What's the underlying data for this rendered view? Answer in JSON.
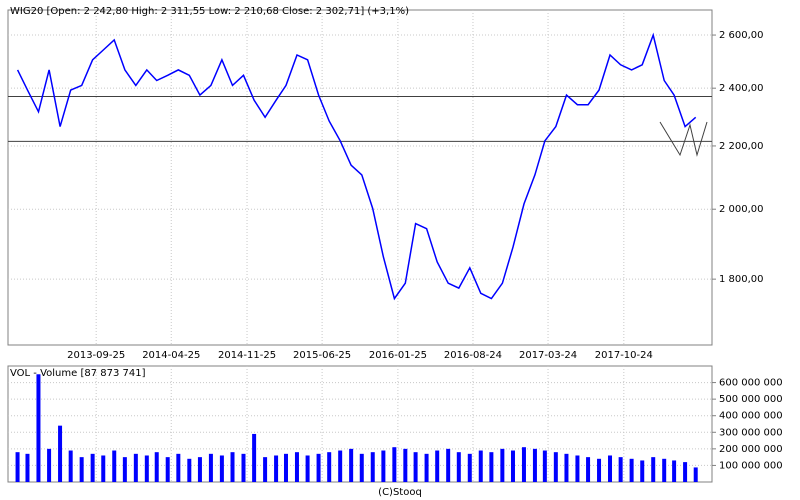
{
  "chart_data": [
    {
      "type": "line",
      "title": "WIG20 [Open: 2 242,80  High: 2 311,55  Low: 2 210,68  Close: 2 302,71] (+3,1%)",
      "log_scale": true,
      "grid": true,
      "x": [
        "2013-02-15",
        "2013-03-15",
        "2013-04-15",
        "2013-05-15",
        "2013-06-15",
        "2013-07-15",
        "2013-08-15",
        "2013-09-15",
        "2013-10-15",
        "2013-11-15",
        "2013-12-15",
        "2014-01-15",
        "2014-02-15",
        "2014-03-15",
        "2014-04-15",
        "2014-05-15",
        "2014-06-15",
        "2014-07-15",
        "2014-08-15",
        "2014-09-15",
        "2014-10-15",
        "2014-11-15",
        "2014-12-15",
        "2015-01-15",
        "2015-02-15",
        "2015-03-15",
        "2015-04-15",
        "2015-05-15",
        "2015-06-15",
        "2015-07-15",
        "2015-08-15",
        "2015-09-15",
        "2015-10-15",
        "2015-11-15",
        "2015-12-15",
        "2016-01-15",
        "2016-02-15",
        "2016-03-15",
        "2016-04-15",
        "2016-05-15",
        "2016-06-15",
        "2016-07-15",
        "2016-08-15",
        "2016-09-15",
        "2016-10-15",
        "2016-11-15",
        "2016-12-15",
        "2017-01-15",
        "2017-02-15",
        "2017-03-15",
        "2017-04-15",
        "2017-05-15",
        "2017-06-15",
        "2017-07-15",
        "2017-08-15",
        "2017-09-15",
        "2017-10-15",
        "2017-11-15",
        "2017-12-15",
        "2018-01-15",
        "2018-02-15",
        "2018-03-15",
        "2018-04-15",
        "2018-05-15"
      ],
      "series": [
        {
          "name": "WIG20",
          "color": "#0000ff",
          "values": [
            2467,
            2393,
            2316,
            2467,
            2265,
            2393,
            2410,
            2505,
            2542,
            2581,
            2467,
            2410,
            2467,
            2428,
            2447,
            2467,
            2447,
            2375,
            2410,
            2505,
            2410,
            2447,
            2357,
            2297,
            2357,
            2410,
            2523,
            2505,
            2375,
            2284,
            2217,
            2137,
            2106,
            2002,
            1861,
            1748,
            1789,
            1957,
            1942,
            1847,
            1789,
            1776,
            1831,
            1762,
            1748,
            1789,
            1889,
            2016,
            2106,
            2217,
            2265,
            2375,
            2341,
            2341,
            2393,
            2523,
            2486,
            2467,
            2486,
            2600,
            2428,
            2375,
            2265,
            2297
          ]
        }
      ],
      "hlines": [
        2370,
        2215
      ],
      "xlim": [
        "2013-01-19",
        "2018-06-30"
      ],
      "xticks": [
        "2013-09-25",
        "2014-04-25",
        "2014-11-25",
        "2015-06-25",
        "2016-01-25",
        "2016-08-24",
        "2017-03-24",
        "2017-10-24"
      ],
      "ylim": [
        1630,
        2700
      ],
      "yticks": [
        {
          "value": 1800,
          "label": "1 800,00"
        },
        {
          "value": 2000,
          "label": "2 000,00"
        },
        {
          "value": 2200,
          "label": "2 200,00"
        },
        {
          "value": 2400,
          "label": "2 400,00"
        },
        {
          "value": 2600,
          "label": "2 600,00"
        }
      ]
    },
    {
      "type": "bar",
      "title": "VOL - Volume [87 873 741]",
      "grid": true,
      "color": "#0000ff",
      "x": [
        "2013-02-15",
        "2013-03-15",
        "2013-04-15",
        "2013-05-15",
        "2013-06-15",
        "2013-07-15",
        "2013-08-15",
        "2013-09-15",
        "2013-10-15",
        "2013-11-15",
        "2013-12-15",
        "2014-01-15",
        "2014-02-15",
        "2014-03-15",
        "2014-04-15",
        "2014-05-15",
        "2014-06-15",
        "2014-07-15",
        "2014-08-15",
        "2014-09-15",
        "2014-10-15",
        "2014-11-15",
        "2014-12-15",
        "2015-01-15",
        "2015-02-15",
        "2015-03-15",
        "2015-04-15",
        "2015-05-15",
        "2015-06-15",
        "2015-07-15",
        "2015-08-15",
        "2015-09-15",
        "2015-10-15",
        "2015-11-15",
        "2015-12-15",
        "2016-01-15",
        "2016-02-15",
        "2016-03-15",
        "2016-04-15",
        "2016-05-15",
        "2016-06-15",
        "2016-07-15",
        "2016-08-15",
        "2016-09-15",
        "2016-10-15",
        "2016-11-15",
        "2016-12-15",
        "2017-01-15",
        "2017-02-15",
        "2017-03-15",
        "2017-04-15",
        "2017-05-15",
        "2017-06-15",
        "2017-07-15",
        "2017-08-15",
        "2017-09-15",
        "2017-10-15",
        "2017-11-15",
        "2017-12-15",
        "2018-01-15",
        "2018-02-15",
        "2018-03-15",
        "2018-04-15",
        "2018-05-15"
      ],
      "values": [
        180000000,
        170000000,
        650000000,
        200000000,
        340000000,
        190000000,
        150000000,
        170000000,
        160000000,
        190000000,
        150000000,
        170000000,
        160000000,
        180000000,
        150000000,
        170000000,
        140000000,
        150000000,
        170000000,
        160000000,
        180000000,
        170000000,
        290000000,
        150000000,
        160000000,
        170000000,
        180000000,
        160000000,
        170000000,
        180000000,
        190000000,
        200000000,
        170000000,
        180000000,
        190000000,
        210000000,
        200000000,
        180000000,
        170000000,
        190000000,
        200000000,
        180000000,
        170000000,
        190000000,
        180000000,
        200000000,
        190000000,
        210000000,
        200000000,
        190000000,
        180000000,
        170000000,
        160000000,
        150000000,
        140000000,
        160000000,
        150000000,
        140000000,
        130000000,
        150000000,
        140000000,
        130000000,
        120000000,
        87873741
      ],
      "xlim": [
        "2013-01-19",
        "2018-06-30"
      ],
      "xticks": [
        "2013-09-25",
        "2014-04-25",
        "2014-11-25",
        "2015-06-25",
        "2016-01-25",
        "2016-08-24",
        "2017-03-24",
        "2017-10-24"
      ],
      "ylim": [
        0,
        700000000
      ],
      "yticks": [
        {
          "value": 100000000,
          "label": "100 000 000"
        },
        {
          "value": 200000000,
          "label": "200 000 000"
        },
        {
          "value": 300000000,
          "label": "300 000 000"
        },
        {
          "value": 400000000,
          "label": "400 000 000"
        },
        {
          "value": 500000000,
          "label": "500 000 000"
        },
        {
          "value": 600000000,
          "label": "600 000 000"
        }
      ]
    }
  ],
  "footer": "(C)Stooq"
}
